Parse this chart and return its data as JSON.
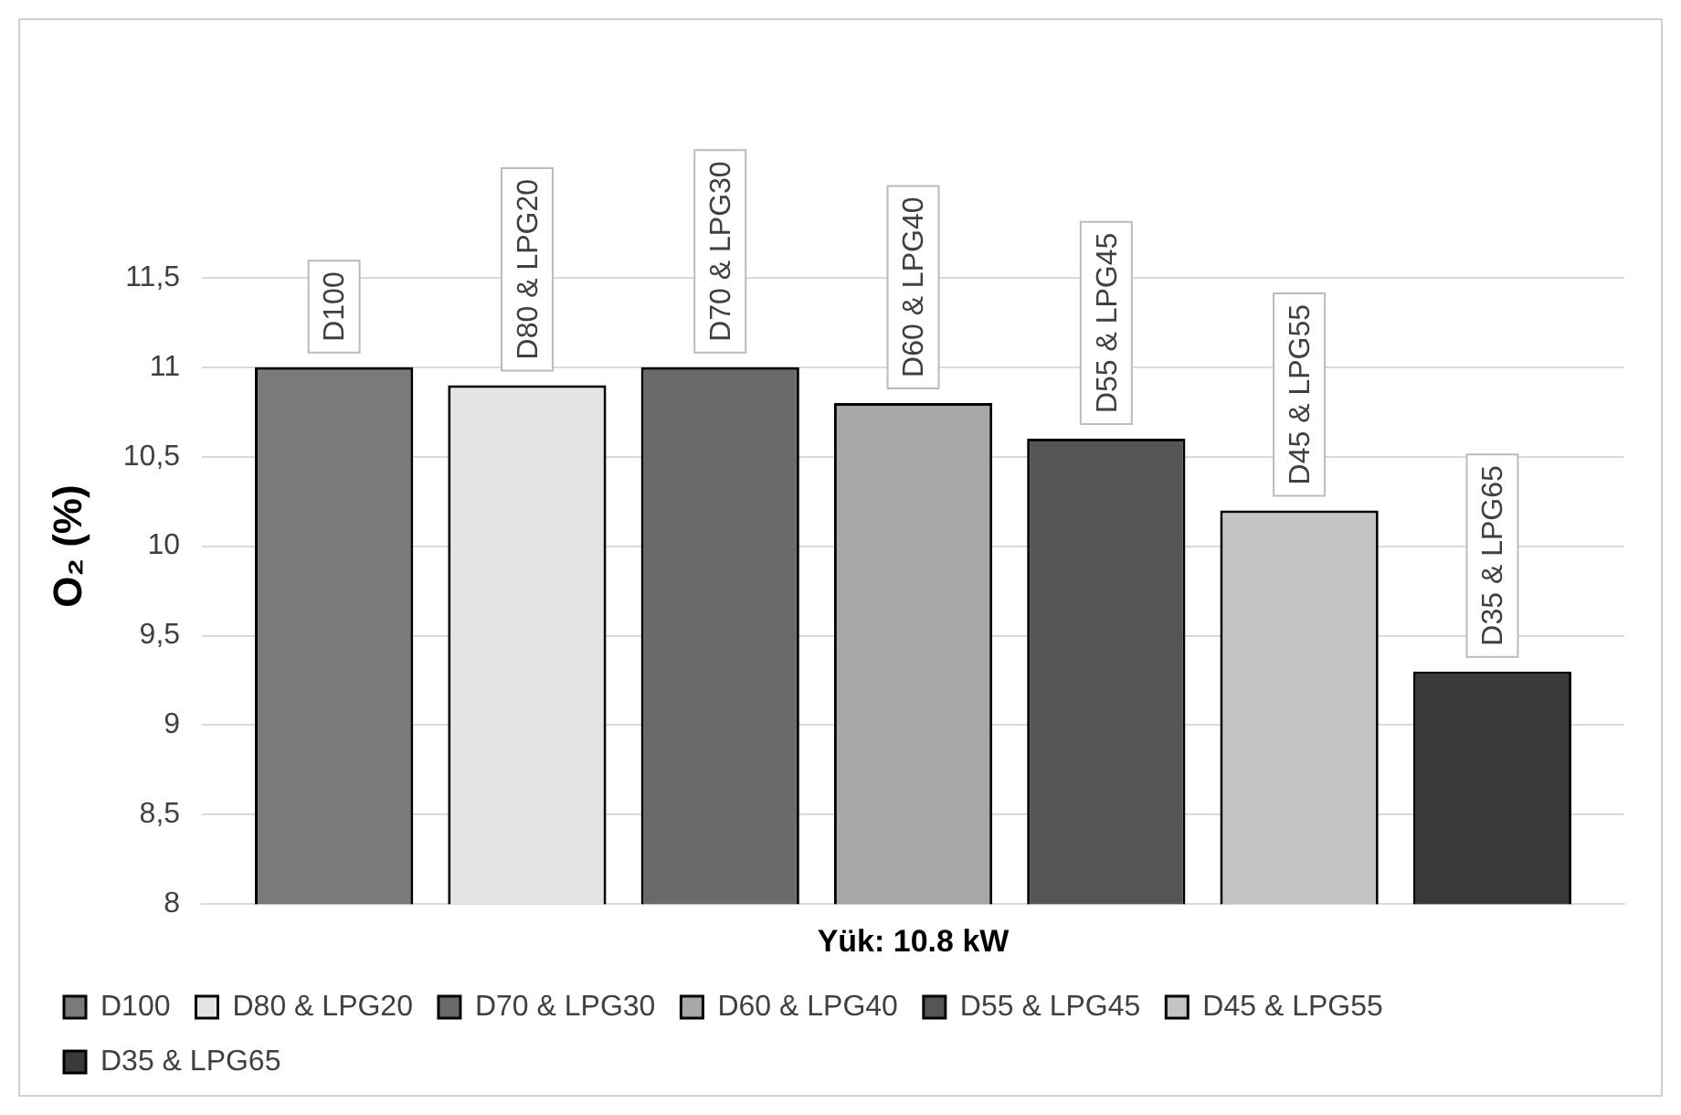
{
  "chart_data": {
    "type": "bar",
    "ylabel": "O₂ (%)",
    "categories": [
      "Yük: 10.8 kW"
    ],
    "series": [
      {
        "name": "D100",
        "color": "#7a7a7a",
        "values": [
          11
        ]
      },
      {
        "name": "D80 & LPG20",
        "color": "#e4e4e4",
        "values": [
          10.9
        ]
      },
      {
        "name": "D70 & LPG30",
        "color": "#6a6a6a",
        "values": [
          11
        ]
      },
      {
        "name": "D60 & LPG40",
        "color": "#a8a8a8",
        "values": [
          10.8
        ]
      },
      {
        "name": "D55 & LPG45",
        "color": "#555555",
        "values": [
          10.6
        ]
      },
      {
        "name": "D45 & LPG55",
        "color": "#c4c4c4",
        "values": [
          10.2
        ]
      },
      {
        "name": "D35 & LPG65",
        "color": "#3a3a3a",
        "values": [
          9.3
        ]
      }
    ],
    "ylim": [
      8,
      12
    ],
    "yticks": [
      8,
      {
        "value": 8.5,
        "label": "8,5"
      },
      9,
      {
        "value": 9.5,
        "label": "9,5"
      },
      10,
      {
        "value": 10.5,
        "label": "10,5"
      },
      11,
      {
        "value": 11.5,
        "label": "11,5"
      }
    ],
    "grid": "y",
    "legend": "bottom"
  }
}
